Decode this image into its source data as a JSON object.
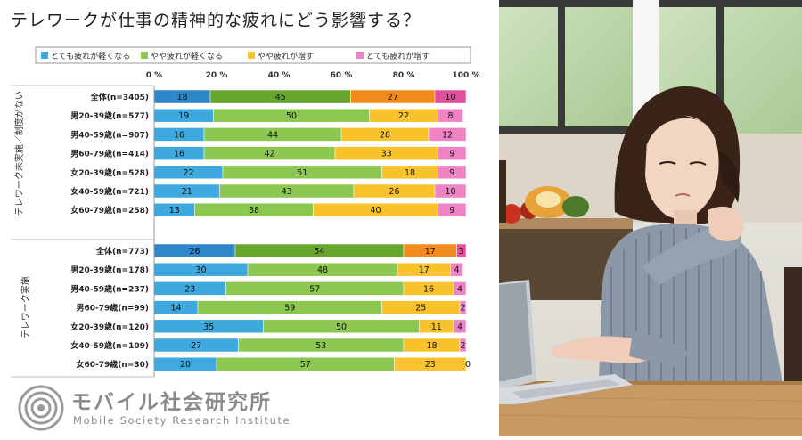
{
  "title": "テレワークが仕事の精神的な疲れにどう影響する？",
  "logo": {
    "name_jp": "モバイル社会研究所",
    "name_en": "Mobile Society Research Institute"
  },
  "chart_data": {
    "type": "bar",
    "orientation": "horizontal",
    "stacked": true,
    "percent_axis": true,
    "xlim": [
      0,
      100
    ],
    "ticks": [
      "0 %",
      "20 %",
      "40 %",
      "60 %",
      "80 %",
      "100 %"
    ],
    "legend_position": "top",
    "series": [
      {
        "name": "とても疲れが軽くなる",
        "color": "#3ea9de"
      },
      {
        "name": "やや疲れが軽くなる",
        "color": "#8cc751"
      },
      {
        "name": "やや疲れが増す",
        "color": "#f8c22c"
      },
      {
        "name": "とても疲れが増す",
        "color": "#ee84c3"
      }
    ],
    "groups": [
      {
        "label": "テレワーク未実施／制度がない",
        "rows": [
          {
            "label": "全体(n=3405)",
            "values": [
              18,
              45,
              27,
              10
            ],
            "colors": [
              "#2f86c8",
              "#67a62d",
              "#f28a1e",
              "#e24f9b"
            ]
          },
          {
            "label": "男20-39歳(n=577)",
            "values": [
              19,
              50,
              22,
              8
            ]
          },
          {
            "label": "男40-59歳(n=907)",
            "values": [
              16,
              44,
              28,
              12
            ]
          },
          {
            "label": "男60-79歳(n=414)",
            "values": [
              16,
              42,
              33,
              9
            ]
          },
          {
            "label": "女20-39歳(n=528)",
            "values": [
              22,
              51,
              18,
              9
            ]
          },
          {
            "label": "女40-59歳(n=721)",
            "values": [
              21,
              43,
              26,
              10
            ]
          },
          {
            "label": "女60-79歳(n=258)",
            "values": [
              13,
              38,
              40,
              9
            ]
          }
        ]
      },
      {
        "label": "テレワーク実施",
        "rows": [
          {
            "label": "全体(n=773)",
            "values": [
              26,
              54,
              17,
              3
            ],
            "colors": [
              "#2f86c8",
              "#67a62d",
              "#f28a1e",
              "#e24f9b"
            ]
          },
          {
            "label": "男20-39歳(n=178)",
            "values": [
              30,
              48,
              17,
              4
            ]
          },
          {
            "label": "男40-59歳(n=237)",
            "values": [
              23,
              57,
              16,
              4
            ]
          },
          {
            "label": "男60-79歳(n=99)",
            "values": [
              14,
              59,
              25,
              2
            ]
          },
          {
            "label": "女20-39歳(n=120)",
            "values": [
              35,
              50,
              11,
              4
            ]
          },
          {
            "label": "女40-59歳(n=109)",
            "values": [
              27,
              53,
              18,
              2
            ]
          },
          {
            "label": "女60-79歳(n=30)",
            "values": [
              20,
              57,
              23,
              0
            ]
          }
        ]
      }
    ]
  }
}
